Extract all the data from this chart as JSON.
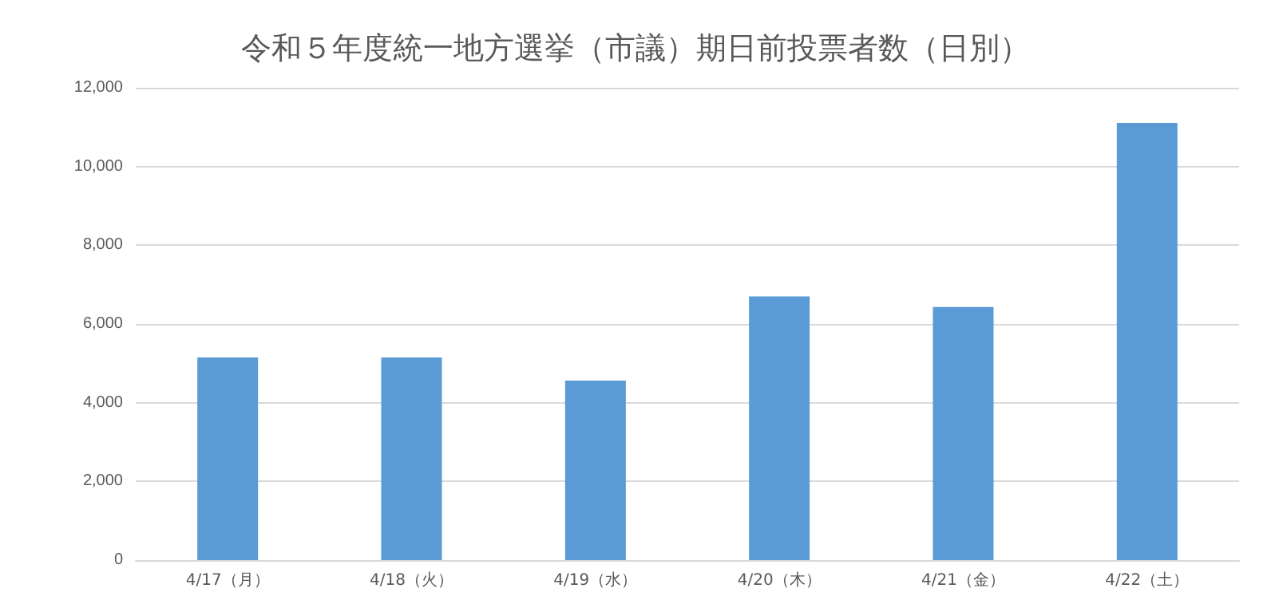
{
  "chart_data": {
    "type": "bar",
    "title": "令和５年度統一地方選挙（市議）期日前投票者数（日別）",
    "categories": [
      "4/17（月）",
      "4/18（火）",
      "4/19（水）",
      "4/20（木）",
      "4/21（金）",
      "4/22（土）"
    ],
    "values": [
      5150,
      5150,
      4560,
      6700,
      6430,
      11110
    ],
    "color": "#5b9bd5",
    "ylim": [
      0,
      12000
    ],
    "yticks": [
      0,
      {
        "value": 2000,
        "label": "2,000"
      },
      {
        "value": 4000,
        "label": "4,000"
      },
      {
        "value": 6000,
        "label": "6,000"
      },
      {
        "value": 8000,
        "label": "8,000"
      },
      {
        "value": 10000,
        "label": "10,000"
      },
      {
        "value": 12000,
        "label": "12,000"
      }
    ],
    "grid": "y"
  }
}
